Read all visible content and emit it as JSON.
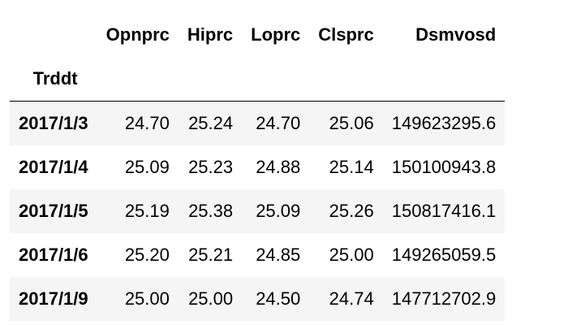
{
  "table": {
    "columns": [
      "Opnprc",
      "Hiprc",
      "Loprc",
      "Clsprc",
      "Dsmvosd"
    ],
    "index_name": "Trddt",
    "rows": [
      {
        "index": "2017/1/3",
        "values": [
          "24.70",
          "25.24",
          "24.70",
          "25.06",
          "149623295.6"
        ]
      },
      {
        "index": "2017/1/4",
        "values": [
          "25.09",
          "25.23",
          "24.88",
          "25.14",
          "150100943.8"
        ]
      },
      {
        "index": "2017/1/5",
        "values": [
          "25.19",
          "25.38",
          "25.09",
          "25.26",
          "150817416.1"
        ]
      },
      {
        "index": "2017/1/6",
        "values": [
          "25.20",
          "25.21",
          "24.85",
          "25.00",
          "149265059.5"
        ]
      },
      {
        "index": "2017/1/9",
        "values": [
          "25.00",
          "25.00",
          "24.50",
          "24.74",
          "147712702.9"
        ]
      }
    ]
  }
}
